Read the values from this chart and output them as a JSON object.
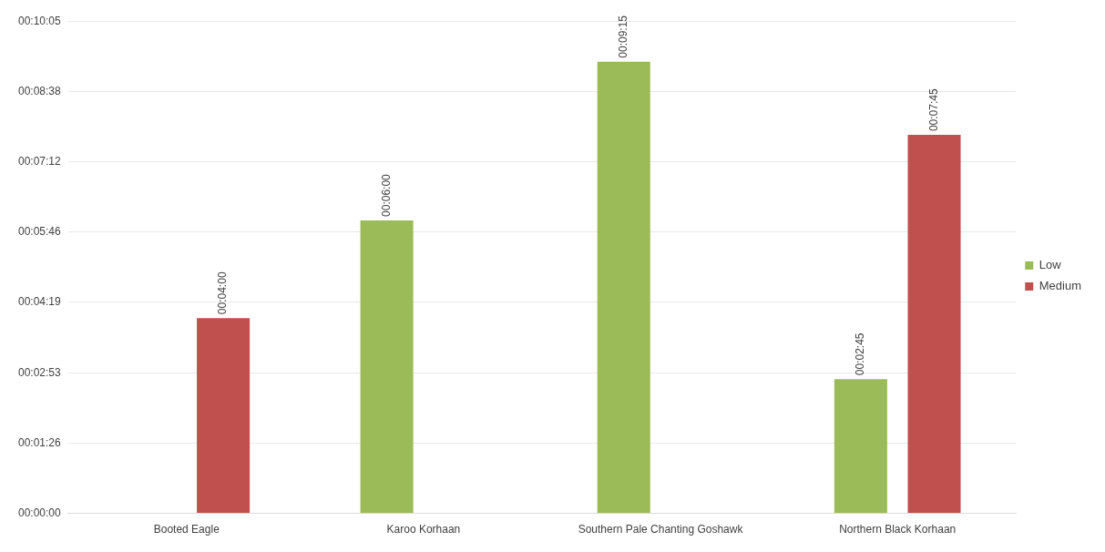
{
  "chart_data": {
    "type": "bar",
    "categories": [
      "Booted Eagle",
      "Karoo Korhaan",
      "Southern Pale Chanting Goshawk",
      "Northern Black Korhaan"
    ],
    "series": [
      {
        "name": "Low",
        "color": "#9bbb59",
        "values": [
          null,
          360,
          555,
          165
        ],
        "value_labels": [
          null,
          "00:06:00",
          "00:09:15",
          "00:02:45"
        ]
      },
      {
        "name": "Medium",
        "color": "#c0504d",
        "values": [
          240,
          null,
          null,
          465
        ],
        "value_labels": [
          "00:04:00",
          null,
          null,
          "00:07:45"
        ]
      }
    ],
    "ylim": [
      0,
      604.8
    ],
    "yticks": [
      {
        "value": 0,
        "label": "00:00:00"
      },
      {
        "value": 86.4,
        "label": "00:01:26"
      },
      {
        "value": 172.8,
        "label": "00:02:53"
      },
      {
        "value": 259.2,
        "label": "00:04:19"
      },
      {
        "value": 345.6,
        "label": "00:05:46"
      },
      {
        "value": 432,
        "label": "00:07:12"
      },
      {
        "value": 518.4,
        "label": "00:08:38"
      },
      {
        "value": 604.8,
        "label": "00:10:05"
      }
    ],
    "grid": "y",
    "legend": "right"
  }
}
